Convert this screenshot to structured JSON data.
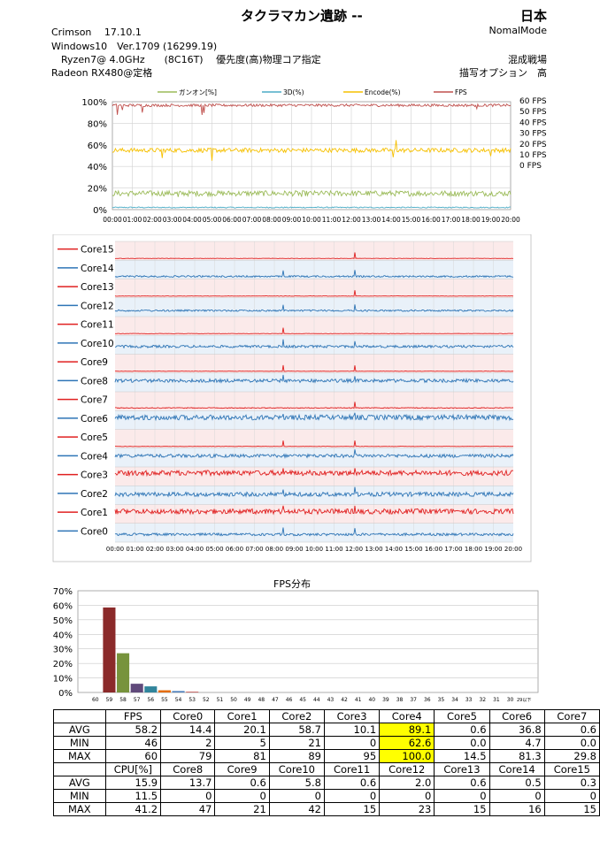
{
  "header": {
    "title": "タクラマカン遺跡 --",
    "region": "日本",
    "driver": "Crimson　 17.10.1",
    "mode": "NomalMode",
    "os": "Windows10　Ver.1709 (16299.19)",
    "cpu": "　Ryzen7@ 4.0GHz　　(8C16T)　  優先度(高)物理コア指定",
    "battle": "混成戦場",
    "gpu": "Radeon RX480@定格",
    "quality": "描写オプション　高"
  },
  "colors": {
    "load": "#9bbb59",
    "d3": "#4bacc6",
    "encode": "#f6c000",
    "fps": "#c0504d",
    "core_red": "#e02020",
    "core_blue": "#2e75b6"
  },
  "chart_data": [
    {
      "type": "line",
      "id": "overview",
      "legend": [
        "ガンオン[%]",
        "3D(%)",
        "Encode(%)",
        "FPS"
      ],
      "y_left_ticks": [
        "100%",
        "80%",
        "60%",
        "40%",
        "20%",
        "0%"
      ],
      "y_right_ticks": [
        "60 FPS",
        "50 FPS",
        "40 FPS",
        "30 FPS",
        "20 FPS",
        "10 FPS",
        "0 FPS"
      ],
      "x_ticks": [
        "00:00",
        "01:00",
        "02:00",
        "03:00",
        "04:00",
        "05:00",
        "06:00",
        "07:00",
        "08:00",
        "09:00",
        "10:00",
        "11:00",
        "12:00",
        "13:00",
        "14:00",
        "15:00",
        "16:00",
        "17:00",
        "18:00",
        "19:00",
        "20:00"
      ],
      "series": [
        {
          "name": "ガンオン[%]",
          "approx_mean": 15
        },
        {
          "name": "3D(%)",
          "approx_mean": 2
        },
        {
          "name": "Encode(%)",
          "approx_mean": 55
        },
        {
          "name": "FPS",
          "approx_mean": 58
        }
      ],
      "ylim": [
        0,
        100
      ]
    },
    {
      "type": "line",
      "id": "cores",
      "series_names": [
        "Core15",
        "Core14",
        "Core13",
        "Core12",
        "Core11",
        "Core10",
        "Core9",
        "Core8",
        "Core7",
        "Core6",
        "Core5",
        "Core4",
        "Core3",
        "Core2",
        "Core1",
        "Core0"
      ],
      "x_ticks": [
        "00:00",
        "01:00",
        "02:00",
        "03:00",
        "04:00",
        "05:00",
        "06:00",
        "07:00",
        "08:00",
        "09:00",
        "10:00",
        "11:00",
        "12:00",
        "13:00",
        "14:00",
        "15:00",
        "16:00",
        "17:00",
        "18:00",
        "19:00",
        "20:00"
      ]
    },
    {
      "type": "bar",
      "id": "fps_distribution",
      "title": "FPS分布",
      "categories": [
        "60",
        "59",
        "58",
        "57",
        "56",
        "55",
        "54",
        "53",
        "52",
        "51",
        "50",
        "49",
        "48",
        "47",
        "46",
        "45",
        "44",
        "43",
        "42",
        "41",
        "40",
        "39",
        "38",
        "37",
        "36",
        "35",
        "34",
        "33",
        "32",
        "31",
        "30",
        "29以下"
      ],
      "values": [
        0,
        58.5,
        27,
        6,
        4.2,
        1.5,
        1,
        0.5,
        0,
        0,
        0,
        0,
        0,
        0,
        0,
        0,
        0,
        0,
        0,
        0,
        0,
        0,
        0,
        0,
        0,
        0,
        0,
        0,
        0,
        0,
        0,
        0
      ],
      "bar_colors": [
        "#c0504d",
        "#8b2a2a",
        "#77933c",
        "#604a7b",
        "#31859c",
        "#e46c0a",
        "#4f81bd",
        "#c0504d"
      ],
      "y_ticks": [
        "70%",
        "60%",
        "50%",
        "40%",
        "30%",
        "20%",
        "10%",
        "0%"
      ],
      "ylim": [
        0,
        70
      ]
    }
  ],
  "table": {
    "rows": [
      [
        "",
        "FPS",
        "Core0",
        "Core1",
        "Core2",
        "Core3",
        "Core4",
        "Core5",
        "Core6",
        "Core7"
      ],
      [
        "AVG",
        "58.2",
        "14.4",
        "20.1",
        "58.7",
        "10.1",
        "89.1",
        "0.6",
        "36.8",
        "0.6"
      ],
      [
        "MIN",
        "46",
        "2",
        "5",
        "21",
        "0",
        "62.6",
        "0.0",
        "4.7",
        "0.0"
      ],
      [
        "MAX",
        "60",
        "79",
        "81",
        "89",
        "95",
        "100.0",
        "14.5",
        "81.3",
        "29.8"
      ],
      [
        "",
        "CPU[%]",
        "Core8",
        "Core9",
        "Core10",
        "Core11",
        "Core12",
        "Core13",
        "Core14",
        "Core15"
      ],
      [
        "AVG",
        "15.9",
        "13.7",
        "0.6",
        "5.8",
        "0.6",
        "2.0",
        "0.6",
        "0.5",
        "0.3"
      ],
      [
        "MIN",
        "11.5",
        "0",
        "0",
        "0",
        "0",
        "0",
        "0",
        "0",
        "0"
      ],
      [
        "MAX",
        "41.2",
        "47",
        "21",
        "42",
        "15",
        "23",
        "15",
        "16",
        "15"
      ]
    ],
    "highlight_color": "#ffff00"
  }
}
